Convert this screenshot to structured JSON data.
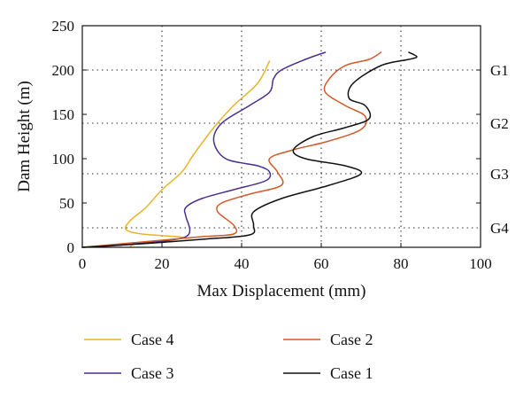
{
  "chart_data": {
    "type": "line",
    "title": "",
    "xlabel": "Max Displacement (mm)",
    "ylabel": "Dam Height (m)",
    "xlim": [
      0,
      100
    ],
    "ylim": [
      0,
      250
    ],
    "xticks": [
      "0",
      "20",
      "40",
      "60",
      "80",
      "100"
    ],
    "yticks": [
      "0",
      "50",
      "100",
      "150",
      "200",
      "250"
    ],
    "grid": "dotted",
    "legend_position": "below",
    "group_lines": [
      {
        "label": "G1",
        "y": 200
      },
      {
        "label": "G2",
        "y": 140
      },
      {
        "label": "G3",
        "y": 83
      },
      {
        "label": "G4",
        "y": 22
      }
    ],
    "series": [
      {
        "name": "Case 4",
        "color": "#e8b429",
        "x": [
          12,
          13,
          17,
          22,
          25,
          24,
          15,
          11,
          12,
          16,
          20,
          25,
          28,
          33,
          38,
          44,
          47
        ],
        "y": [
          0,
          4,
          6,
          8,
          10,
          12,
          15,
          20,
          30,
          45,
          65,
          85,
          105,
          135,
          160,
          185,
          210
        ]
      },
      {
        "name": "Case 3",
        "color": "#4a2d91",
        "x": [
          0,
          8,
          16,
          22,
          26,
          27,
          26,
          26,
          30,
          38,
          46,
          47,
          44,
          36,
          33,
          35,
          42,
          47,
          48,
          50,
          56,
          61
        ],
        "y": [
          0,
          2,
          5,
          8,
          12,
          20,
          35,
          45,
          55,
          65,
          75,
          85,
          92,
          100,
          120,
          140,
          160,
          175,
          190,
          200,
          212,
          220
        ]
      },
      {
        "name": "Case 2",
        "color": "#d05a28",
        "x": [
          0,
          10,
          20,
          30,
          38,
          38,
          34,
          35,
          42,
          50,
          49,
          47,
          53,
          62,
          70,
          71,
          66,
          61,
          62,
          66,
          72,
          75
        ],
        "y": [
          0,
          4,
          8,
          12,
          15,
          25,
          40,
          50,
          60,
          70,
          85,
          100,
          110,
          120,
          133,
          148,
          160,
          175,
          190,
          205,
          212,
          220
        ]
      },
      {
        "name": "Case 1",
        "color": "#111111",
        "x": [
          0,
          15,
          30,
          42,
          43,
          43,
          50,
          62,
          70,
          66,
          56,
          53,
          58,
          66,
          72,
          71,
          67,
          68,
          75,
          82,
          84,
          82
        ],
        "y": [
          0,
          4,
          9,
          14,
          25,
          40,
          55,
          70,
          83,
          92,
          100,
          110,
          125,
          135,
          145,
          160,
          168,
          185,
          205,
          212,
          215,
          220
        ]
      }
    ]
  }
}
